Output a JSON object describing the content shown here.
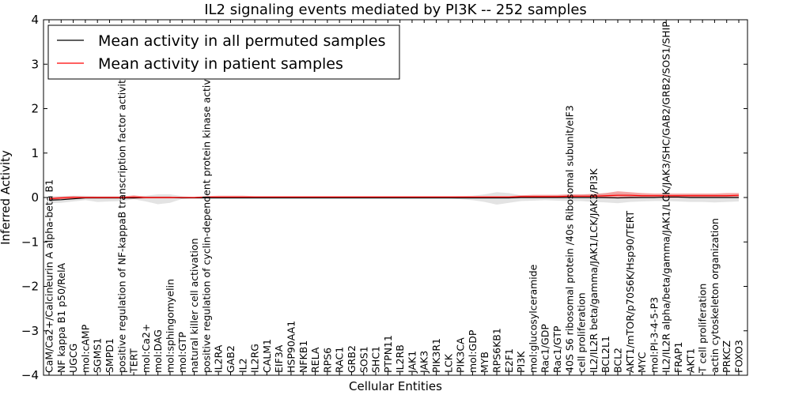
{
  "chart_data": {
    "type": "line",
    "title": "IL2 signaling events mediated by PI3K -- 252 samples",
    "xlabel": "Cellular Entities",
    "ylabel": "Inferred Activity",
    "ylim": [
      -4,
      4
    ],
    "yticks": [
      -4,
      -3,
      -2,
      -1,
      0,
      1,
      2,
      3,
      4
    ],
    "ytick_labels": [
      "−4",
      "−3",
      "−2",
      "−1",
      "0",
      "1",
      "2",
      "3",
      "4"
    ],
    "legend_location": "top-left",
    "categories": [
      "CaM/Ca2+/Calcineurin A alpha-beta B1",
      "NF kappa B1 p50/RelA",
      "UGCG",
      "mol:cAMP",
      "SGMS1",
      "SMPD1",
      "positive regulation of NF-kappaB transcription factor activity",
      "TERT",
      "mol:Ca2+",
      "mol:DAG",
      "mol:sphingomyelin",
      "mol:GTP",
      "natural killer cell activation",
      "positive regulation of cyclin-dependent protein kinase activity",
      "IL2RA",
      "GAB2",
      "IL2",
      "IL2RG",
      "CALM1",
      "EIF3A",
      "HSP90AA1",
      "NFKB1",
      "RELA",
      "RPS6",
      "RAC1",
      "GRB2",
      "SOS1",
      "SHC1",
      "PTPN11",
      "IL2RB",
      "JAK1",
      "JAK3",
      "PIK3R1",
      "LCK",
      "PIK3CA",
      "mol:GDP",
      "MYB",
      "RPS6KB1",
      "E2F1",
      "PI3K",
      "mol:glucosylceramide",
      "Rac1/GDP",
      "Rac1/GTP",
      "40S S6 ribosomal protein /40s Ribosomal subunit/eIF3",
      "cell proliferation",
      "IL2/IL2R beta/gamma/JAK1/LCK/JAK3/PI3K",
      "BCL2L1",
      "BCL2",
      "AKT1/mTOR/p70S6K/Hsp90/TERT",
      "MYC",
      "mol:PI-3-4-5-P3",
      "IL2/IL2R alpha/beta/gamma/JAK1/LCK/JAK3/SHC/GAB2/GRB2/SOS1/SHIP",
      "FRAP1",
      "AKT1",
      "T cell proliferation",
      "actin cytoskeleton organization",
      "PRKCZ",
      "FOXO3"
    ],
    "series": [
      {
        "name": "Mean activity in all permuted samples",
        "color": "#000000",
        "values": [
          -0.06,
          -0.05,
          -0.03,
          -0.01,
          -0.01,
          -0.01,
          -0.01,
          -0.01,
          0,
          0,
          0,
          -0.01,
          -0.01,
          -0.01,
          -0.01,
          -0.01,
          -0.01,
          -0.01,
          -0.01,
          -0.01,
          -0.01,
          -0.01,
          -0.01,
          -0.01,
          -0.01,
          -0.01,
          -0.01,
          -0.01,
          -0.01,
          -0.01,
          -0.01,
          -0.01,
          -0.01,
          -0.01,
          -0.01,
          -0.01,
          -0.01,
          -0.01,
          -0.01,
          0,
          0,
          0,
          0,
          0,
          0,
          0,
          0,
          -0.01,
          0,
          0,
          0,
          0.01,
          0.01,
          0,
          0,
          0,
          0,
          0
        ],
        "band_upper": [
          0.02,
          0.03,
          0.04,
          0.04,
          0.03,
          0.03,
          0.03,
          0.03,
          0.04,
          0.07,
          0.07,
          0.03,
          0.01,
          0.02,
          0.02,
          0.02,
          0.02,
          0.02,
          0.02,
          0.02,
          0.02,
          0.02,
          0.02,
          0.02,
          0.02,
          0.02,
          0.02,
          0.02,
          0.02,
          0.02,
          0.02,
          0.02,
          0.02,
          0.02,
          0.03,
          0.04,
          0.07,
          0.12,
          0.1,
          0.05,
          0.04,
          0.04,
          0.05,
          0.06,
          0.06,
          0.08,
          0.1,
          0.1,
          0.08,
          0.06,
          0.05,
          0.05,
          0.06,
          0.07,
          0.07,
          0.07,
          0.06,
          0.05
        ],
        "band_lower": [
          -0.13,
          -0.12,
          -0.09,
          -0.06,
          -0.1,
          -0.09,
          -0.08,
          -0.04,
          -0.09,
          -0.15,
          -0.12,
          -0.03,
          -0.01,
          -0.02,
          -0.02,
          -0.02,
          -0.02,
          -0.02,
          -0.02,
          -0.02,
          -0.02,
          -0.02,
          -0.02,
          -0.02,
          -0.02,
          -0.02,
          -0.02,
          -0.02,
          -0.02,
          -0.02,
          -0.02,
          -0.02,
          -0.02,
          -0.02,
          -0.04,
          -0.06,
          -0.1,
          -0.16,
          -0.12,
          -0.08,
          -0.07,
          -0.06,
          -0.07,
          -0.08,
          -0.08,
          -0.1,
          -0.11,
          -0.13,
          -0.1,
          -0.09,
          -0.08,
          -0.08,
          -0.09,
          -0.1,
          -0.1,
          -0.11,
          -0.1,
          -0.09
        ],
        "band_color": "#d9d9d9"
      },
      {
        "name": "Mean activity in patient samples",
        "color": "#ff0000",
        "values": [
          -0.03,
          -0.01,
          0,
          0,
          0,
          0,
          0,
          0.01,
          0,
          0,
          0,
          0,
          0,
          0.01,
          0.01,
          0.01,
          0.01,
          0.01,
          0.01,
          0.01,
          0.01,
          0.01,
          0.01,
          0.01,
          0.01,
          0.01,
          0.01,
          0.01,
          0.01,
          0.01,
          0.01,
          0.01,
          0.01,
          0.01,
          0.01,
          0.01,
          0.01,
          0.01,
          0.01,
          0.02,
          0.02,
          0.02,
          0.02,
          0.03,
          0.03,
          0.03,
          0.04,
          0.05,
          0.05,
          0.04,
          0.04,
          0.04,
          0.04,
          0.04,
          0.04,
          0.04,
          0.04,
          0.05
        ],
        "band_upper": [
          0.01,
          0.02,
          0.03,
          0.02,
          0.02,
          0.02,
          0.02,
          0.05,
          0.02,
          0.02,
          0.02,
          0.01,
          0.01,
          0.03,
          0.04,
          0.04,
          0.04,
          0.03,
          0.03,
          0.03,
          0.03,
          0.03,
          0.03,
          0.03,
          0.03,
          0.03,
          0.03,
          0.03,
          0.03,
          0.03,
          0.03,
          0.03,
          0.03,
          0.03,
          0.03,
          0.03,
          0.03,
          0.03,
          0.03,
          0.05,
          0.06,
          0.06,
          0.06,
          0.07,
          0.07,
          0.08,
          0.1,
          0.14,
          0.12,
          0.1,
          0.09,
          0.09,
          0.09,
          0.09,
          0.09,
          0.09,
          0.1,
          0.1
        ],
        "band_lower": [
          -0.06,
          -0.04,
          -0.03,
          -0.02,
          -0.02,
          -0.02,
          -0.02,
          -0.03,
          -0.02,
          -0.02,
          -0.02,
          -0.01,
          -0.01,
          -0.01,
          -0.01,
          -0.01,
          -0.01,
          -0.01,
          -0.01,
          -0.01,
          -0.01,
          -0.01,
          -0.01,
          -0.01,
          -0.01,
          -0.01,
          -0.01,
          -0.01,
          -0.01,
          -0.01,
          -0.01,
          -0.01,
          -0.01,
          -0.01,
          -0.01,
          -0.01,
          -0.01,
          -0.01,
          -0.01,
          -0.01,
          -0.01,
          -0.01,
          -0.01,
          -0.01,
          -0.01,
          -0.01,
          -0.02,
          -0.02,
          -0.02,
          -0.01,
          -0.01,
          -0.01,
          -0.01,
          -0.01,
          -0.01,
          -0.01,
          -0.01,
          -0.01
        ],
        "band_color": "#f08080"
      }
    ]
  }
}
